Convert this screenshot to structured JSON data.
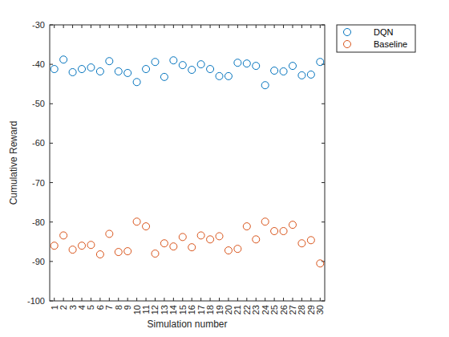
{
  "chart_data": {
    "type": "scatter",
    "xlabel": "Simulation number",
    "ylabel": "Cumulative Reward",
    "x": [
      1,
      2,
      3,
      4,
      5,
      6,
      7,
      8,
      9,
      10,
      11,
      12,
      13,
      14,
      15,
      16,
      17,
      18,
      19,
      20,
      21,
      22,
      23,
      24,
      25,
      26,
      27,
      28,
      29,
      30
    ],
    "xlim": [
      0.5,
      30.5
    ],
    "xticks": [
      1,
      2,
      3,
      4,
      5,
      6,
      7,
      8,
      9,
      10,
      11,
      12,
      13,
      14,
      15,
      16,
      17,
      18,
      19,
      20,
      21,
      22,
      23,
      24,
      25,
      26,
      27,
      28,
      29,
      30
    ],
    "ylim": [
      -100,
      -30
    ],
    "yticks": [
      -100,
      -90,
      -80,
      -70,
      -60,
      -50,
      -40,
      -30
    ],
    "grid": false,
    "legend": "northeastoutside",
    "marker": "circle",
    "series": [
      {
        "name": "DQN",
        "color": "#0072bd",
        "values": [
          -41.2,
          -38.8,
          -42.0,
          -41.2,
          -40.8,
          -41.8,
          -39.2,
          -41.8,
          -42.2,
          -44.5,
          -41.2,
          -39.4,
          -43.2,
          -39.0,
          -40.2,
          -41.4,
          -40.0,
          -41.2,
          -43.0,
          -43.0,
          -39.6,
          -39.8,
          -40.4,
          -45.3,
          -41.6,
          -41.8,
          -40.4,
          -42.8,
          -42.6,
          -39.4
        ]
      },
      {
        "name": "Baseline",
        "color": "#d95319",
        "values": [
          -86.0,
          -83.4,
          -87.0,
          -86.0,
          -85.8,
          -88.2,
          -83.0,
          -87.6,
          -87.4,
          -79.9,
          -81.1,
          -88.0,
          -85.4,
          -86.2,
          -83.8,
          -86.4,
          -83.4,
          -84.4,
          -83.6,
          -87.2,
          -86.8,
          -81.1,
          -84.4,
          -79.9,
          -82.3,
          -82.3,
          -80.7,
          -85.4,
          -84.6,
          -90.5
        ]
      }
    ]
  }
}
